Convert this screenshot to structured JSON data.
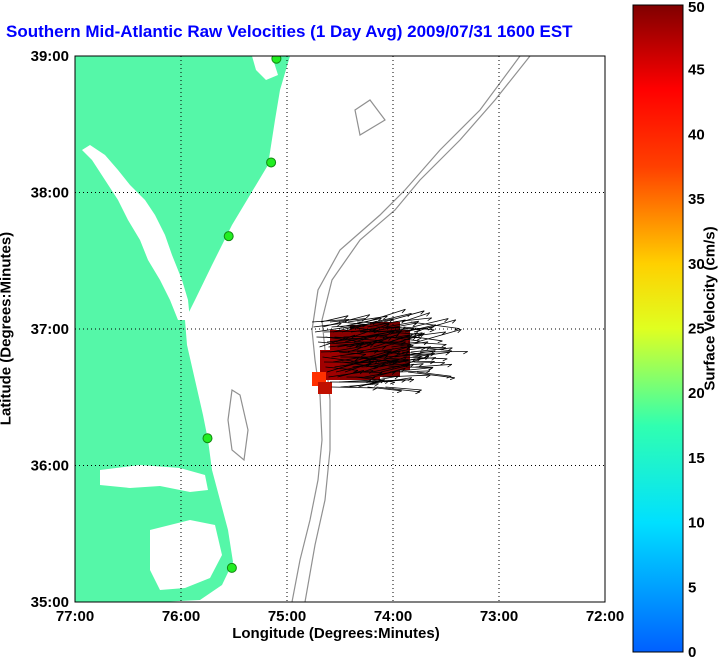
{
  "title": "Southern Mid-Atlantic Raw Velocities (1 Day Avg) 2009/07/31 1600 EST",
  "x_axis": {
    "label": "Longitude (Degrees:Minutes)",
    "ticks": [
      "77:00",
      "76:00",
      "75:00",
      "74:00",
      "73:00",
      "72:00"
    ]
  },
  "y_axis": {
    "label": "Latitude (Degrees:Minutes)",
    "ticks": [
      "39:00",
      "38:00",
      "37:00",
      "36:00",
      "35:00"
    ]
  },
  "colorbar": {
    "label": "Surface Velocity (cm/s)",
    "ticks": [
      "50",
      "45",
      "40",
      "35",
      "30",
      "25",
      "20",
      "15",
      "10",
      "5",
      "0"
    ]
  },
  "colors": {
    "land": "#55f7a8",
    "water": "#ffffff",
    "title": "#0000ff",
    "bathymetry": "#909090",
    "station": "#22ee22",
    "arrow": "#000000",
    "velocity_patch": "#8b0000"
  },
  "map": {
    "lon_range": [
      -77,
      -72
    ],
    "lat_range": [
      35,
      39
    ],
    "grid": "dotted",
    "stations": [
      {
        "lon": -75.1,
        "lat": 38.98
      },
      {
        "lon": -75.15,
        "lat": 38.22
      },
      {
        "lon": -75.55,
        "lat": 37.68
      },
      {
        "lon": -75.75,
        "lat": 36.2
      },
      {
        "lon": -75.52,
        "lat": 35.25
      }
    ]
  }
}
